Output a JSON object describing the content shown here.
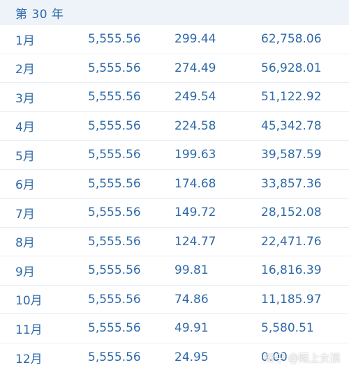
{
  "header": {
    "title": "第 30 年"
  },
  "rows": [
    {
      "month": "1月",
      "payment": "5,555.56",
      "interest": "299.44",
      "balance": "62,758.06"
    },
    {
      "month": "2月",
      "payment": "5,555.56",
      "interest": "274.49",
      "balance": "56,928.01"
    },
    {
      "month": "3月",
      "payment": "5,555.56",
      "interest": "249.54",
      "balance": "51,122.92"
    },
    {
      "month": "4月",
      "payment": "5,555.56",
      "interest": "224.58",
      "balance": "45,342.78"
    },
    {
      "month": "5月",
      "payment": "5,555.56",
      "interest": "199.63",
      "balance": "39,587.59"
    },
    {
      "month": "6月",
      "payment": "5,555.56",
      "interest": "174.68",
      "balance": "33,857.36"
    },
    {
      "month": "7月",
      "payment": "5,555.56",
      "interest": "149.72",
      "balance": "28,152.08"
    },
    {
      "month": "8月",
      "payment": "5,555.56",
      "interest": "124.77",
      "balance": "22,471.76"
    },
    {
      "month": "9月",
      "payment": "5,555.56",
      "interest": "99.81",
      "balance": "16,816.39"
    },
    {
      "month": "10月",
      "payment": "5,555.56",
      "interest": "74.86",
      "balance": "11,185.97"
    },
    {
      "month": "11月",
      "payment": "5,555.56",
      "interest": "49.91",
      "balance": "5,580.51"
    },
    {
      "month": "12月",
      "payment": "5,555.56",
      "interest": "24.95",
      "balance": "0.00"
    }
  ],
  "watermark": {
    "text": "知乎 @陌上女孩"
  }
}
